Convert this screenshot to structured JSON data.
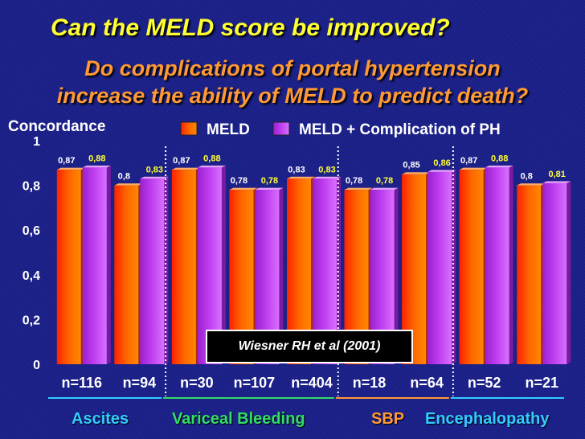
{
  "chart_data": {
    "type": "bar",
    "title": "Can the MELD score be improved?",
    "subtitle_line1": "Do complications of portal hypertension",
    "subtitle_line2": "increase the ability of MELD to predict death?",
    "ylabel": "Concordance",
    "ylim": [
      0,
      1
    ],
    "yticks": [
      "0",
      "0,2",
      "0,4",
      "0,6",
      "0,8",
      "1"
    ],
    "ytick_values": [
      0,
      0.2,
      0.4,
      0.6,
      0.8,
      1
    ],
    "categories": [
      "n=116",
      "n=94",
      "n=30",
      "n=107",
      "n=404",
      "n=18",
      "n=64",
      "n=52",
      "n=21"
    ],
    "series": [
      {
        "name": "MELD",
        "color": "#ff4400",
        "values": [
          0.87,
          0.8,
          0.87,
          0.78,
          0.83,
          0.78,
          0.85,
          0.87,
          0.8
        ],
        "labels": [
          "0,87",
          "0,8",
          "0,87",
          "0,78",
          "0,83",
          "0,78",
          "0,85",
          "0,87",
          "0,8"
        ]
      },
      {
        "name": "MELD + Complication of PH",
        "color": "#b030e0",
        "values": [
          0.88,
          0.83,
          0.88,
          0.78,
          0.83,
          0.78,
          0.86,
          0.88,
          0.81
        ],
        "labels": [
          "0,88",
          "0,83",
          "0,88",
          "0,78",
          "0,83",
          "0,78",
          "0,86",
          "0,88",
          "0,81"
        ]
      }
    ],
    "groups": [
      {
        "name": "Ascites",
        "color": "#33ccff",
        "start": 0,
        "end": 1
      },
      {
        "name": "Variceal Bleeding",
        "color": "#33dd66",
        "start": 2,
        "end": 4
      },
      {
        "name": "SBP",
        "color": "#ff9933",
        "start": 5,
        "end": 6
      },
      {
        "name": "Encephalopathy",
        "color": "#33ccff",
        "start": 7,
        "end": 8
      }
    ],
    "annotation": "Wiesner RH et al (2001)",
    "legend_position": "top"
  }
}
